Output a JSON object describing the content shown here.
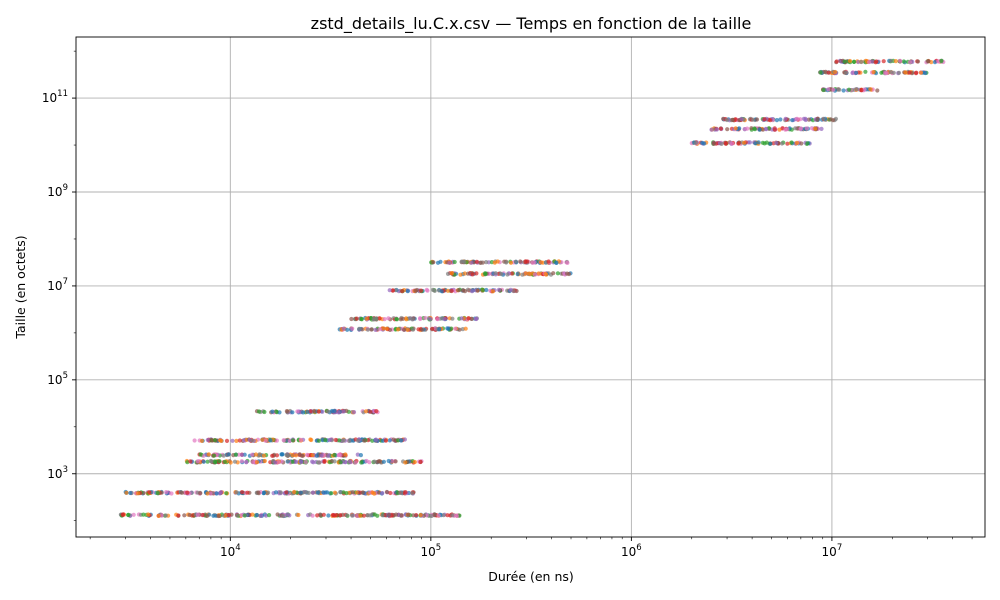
{
  "chart_data": {
    "type": "scatter",
    "title": "zstd_details_lu.C.x.csv — Temps en fonction de la taille",
    "xlabel": "Durée (en ns)",
    "ylabel": "Taille (en octets)",
    "xscale": "log",
    "yscale": "log",
    "xlim": [
      1700,
      58000000
    ],
    "ylim": [
      45,
      2000000000000
    ],
    "grid": true,
    "legend": "none",
    "x_ticks": [
      {
        "value": 10000,
        "base": "10",
        "exp": "4"
      },
      {
        "value": 100000,
        "base": "10",
        "exp": "5"
      },
      {
        "value": 1000000,
        "base": "10",
        "exp": "6"
      },
      {
        "value": 10000000,
        "base": "10",
        "exp": "7"
      }
    ],
    "y_ticks": [
      {
        "value": 1000,
        "base": "10",
        "exp": "3"
      },
      {
        "value": 100000,
        "base": "10",
        "exp": "5"
      },
      {
        "value": 10000000,
        "base": "10",
        "exp": "7"
      },
      {
        "value": 1000000000,
        "base": "10",
        "exp": "9"
      },
      {
        "value": 100000000000,
        "base": "10",
        "exp": "11"
      }
    ],
    "palette": [
      "#1f77b4",
      "#ff7f0e",
      "#2ca02c",
      "#d62728",
      "#9467bd",
      "#8c564b",
      "#e377c2",
      "#7f7f7f"
    ],
    "point_clusters": [
      {
        "size": 131,
        "x_range": [
          2800,
          140000
        ]
      },
      {
        "size": 393,
        "x_range": [
          3000,
          90000
        ]
      },
      {
        "size": 1800,
        "x_range": [
          6000,
          90000
        ]
      },
      {
        "size": 2500,
        "x_range": [
          7000,
          45000
        ]
      },
      {
        "size": 5200,
        "x_range": [
          6500,
          75000
        ]
      },
      {
        "size": 21000,
        "x_range": [
          13500,
          55000
        ]
      },
      {
        "size": 1200000,
        "x_range": [
          35000,
          150000
        ]
      },
      {
        "size": 2000000,
        "x_range": [
          40000,
          180000
        ]
      },
      {
        "size": 8000000,
        "x_range": [
          60000,
          270000
        ]
      },
      {
        "size": 18000000,
        "x_range": [
          120000,
          500000
        ]
      },
      {
        "size": 32000000,
        "x_range": [
          100000,
          480000
        ]
      },
      {
        "size": 11000000000,
        "x_range": [
          2000000,
          8000000
        ]
      },
      {
        "size": 22000000000,
        "x_range": [
          2500000,
          9000000
        ]
      },
      {
        "size": 35000000000,
        "x_range": [
          2800000,
          10500000
        ]
      },
      {
        "size": 150000000000,
        "x_range": [
          9000000,
          17000000
        ]
      },
      {
        "size": 350000000000,
        "x_range": [
          8500000,
          30000000
        ]
      },
      {
        "size": 600000000000,
        "x_range": [
          10500000,
          36000000
        ]
      }
    ]
  }
}
